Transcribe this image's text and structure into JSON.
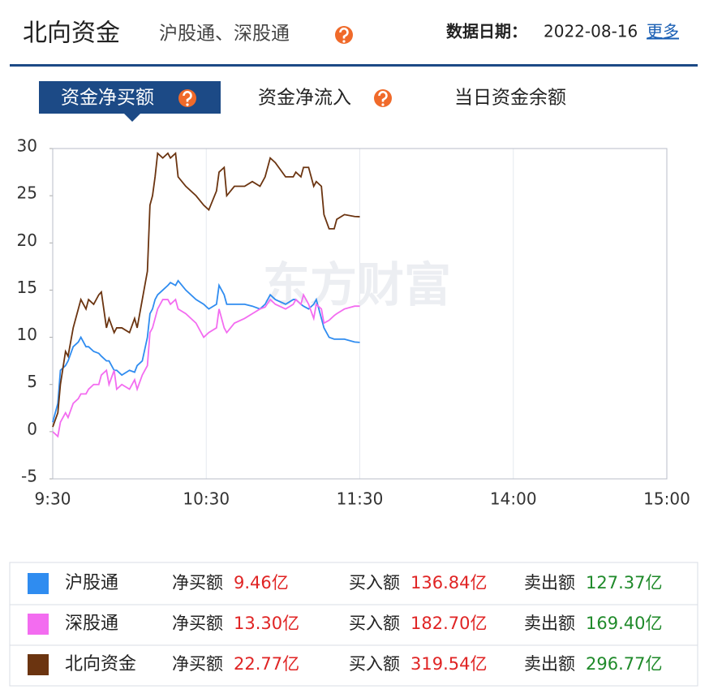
{
  "header": {
    "title": "北向资金",
    "subtitle": "沪股通、深股通",
    "date_label": "数据日期：",
    "date": "2022-08-16",
    "more": "更多"
  },
  "tabs": [
    "资金净买额",
    "资金净流入",
    "当日资金余额"
  ],
  "watermark": "东方财富",
  "chart_data": {
    "type": "line",
    "x": [
      0,
      2,
      3,
      5,
      6,
      8,
      10,
      11,
      13,
      14,
      16,
      18,
      19,
      21,
      22,
      24,
      25,
      27,
      30,
      32,
      33,
      35,
      37,
      38,
      39,
      40,
      41,
      43,
      45,
      46,
      48,
      49,
      52,
      56,
      59,
      61,
      64,
      65,
      67,
      68,
      71,
      75,
      78,
      81,
      83,
      85,
      87,
      91,
      94,
      95,
      97,
      98,
      100,
      102,
      103,
      105,
      106,
      108,
      110,
      111,
      114,
      118,
      120
    ],
    "series": [
      {
        "name": "沪股通",
        "color": "#2f8cf0",
        "values": [
          1,
          3,
          6.5,
          7,
          7.5,
          9,
          9.5,
          10,
          9,
          9,
          8.5,
          8.3,
          8,
          7.5,
          7.5,
          6.5,
          6.5,
          6,
          6.5,
          6.3,
          7,
          7.5,
          10,
          12.5,
          13,
          14,
          14.5,
          15,
          15.5,
          15.8,
          15.5,
          16,
          15,
          14,
          13.5,
          13,
          13.5,
          15.5,
          14.5,
          13.5,
          13.5,
          13.5,
          13.3,
          13,
          13.5,
          14.5,
          14,
          13.5,
          14,
          14,
          13.5,
          13.3,
          13,
          13.5,
          14,
          12,
          11,
          10,
          9.8,
          9.8,
          9.8,
          9.5,
          9.46
        ]
      },
      {
        "name": "深股通",
        "color": "#f36cf0",
        "values": [
          0,
          -0.5,
          1,
          2,
          1.5,
          3,
          3.5,
          4,
          4,
          4.5,
          5,
          5,
          6,
          6.5,
          5,
          6.5,
          4.5,
          5,
          4.5,
          5.5,
          4.5,
          6,
          7,
          10.5,
          11,
          12,
          13,
          14,
          14,
          13.5,
          14,
          13,
          12.5,
          11.5,
          10,
          10.5,
          11,
          13,
          11,
          10.5,
          11.5,
          12,
          12.5,
          13,
          13.2,
          14,
          13.5,
          13,
          13.5,
          14,
          13.5,
          14.5,
          13.5,
          12,
          13.5,
          13,
          11.5,
          11.8,
          12.3,
          12.5,
          13,
          13.3,
          13.3
        ]
      },
      {
        "name": "北向资金",
        "color": "#6b3410",
        "values": [
          0.5,
          2,
          5,
          8.5,
          8,
          11,
          13,
          14,
          13,
          14,
          13.5,
          14.5,
          14.8,
          11,
          12,
          10.5,
          11,
          11,
          10.5,
          12,
          11,
          14,
          17,
          24,
          25,
          27,
          29.5,
          29,
          29.5,
          29,
          29.5,
          27,
          26,
          25,
          24,
          23.5,
          25.5,
          27.5,
          28,
          25,
          26,
          26,
          26.5,
          26,
          27,
          29,
          28.5,
          27,
          27,
          27.5,
          27,
          28,
          28,
          26,
          26.5,
          26,
          23,
          21.5,
          21.5,
          22.5,
          23,
          22.8,
          22.77
        ]
      }
    ],
    "xlim": [
      0,
      240
    ],
    "xticks": [
      {
        "value": 0,
        "label": "9:30"
      },
      {
        "value": 60,
        "label": "10:30"
      },
      {
        "value": 120,
        "label": "11:30"
      },
      {
        "value": 180,
        "label": "14:00"
      },
      {
        "value": 240,
        "label": "15:00"
      }
    ],
    "ylim": [
      -5,
      30
    ],
    "yticks": [
      -5,
      0,
      5,
      10,
      15,
      20,
      25,
      30
    ],
    "grid": true
  },
  "table": {
    "rows": [
      [
        "净买额",
        "9.46亿",
        "买入额",
        "136.84亿",
        "卖出额",
        "127.37亿"
      ],
      [
        "净买额",
        "13.30亿",
        "买入额",
        "182.70亿",
        "卖出额",
        "169.40亿"
      ],
      [
        "净买额",
        "22.77亿",
        "买入额",
        "319.54亿",
        "卖出额",
        "296.77亿"
      ]
    ]
  }
}
